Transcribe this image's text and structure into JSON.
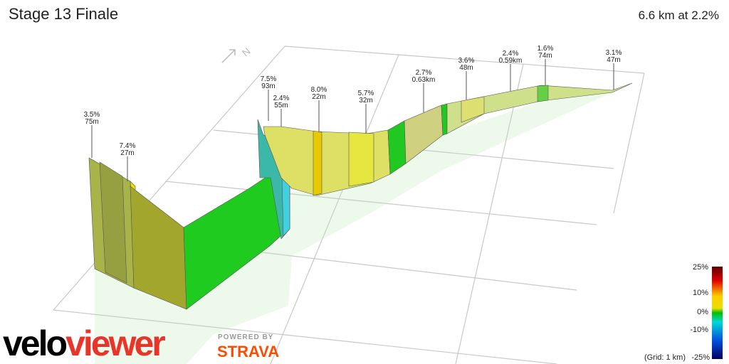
{
  "header": {
    "title": "Stage 13 Finale",
    "summary": "6.6 km at 2.2%"
  },
  "annotations": [
    {
      "grade": "3.5%",
      "length": "75m"
    },
    {
      "grade": "7.4%",
      "length": "27m"
    },
    {
      "grade": "7.5%",
      "length": "93m"
    },
    {
      "grade": "2.4%",
      "length": "55m"
    },
    {
      "grade": "8.0%",
      "length": "22m"
    },
    {
      "grade": "5.7%",
      "length": "32m"
    },
    {
      "grade": "2.7%",
      "length": "0.63km"
    },
    {
      "grade": "3.6%",
      "length": "48m"
    },
    {
      "grade": "2.4%",
      "length": "0.59km"
    },
    {
      "grade": "1.6%",
      "length": "74m"
    },
    {
      "grade": "3.1%",
      "length": "47m"
    }
  ],
  "north": "N",
  "legend": {
    "labels": [
      "25%",
      "10%",
      "0%",
      "-10%",
      "-25%"
    ],
    "grid_note": "(Grid: 1 km)"
  },
  "branding": {
    "logo_part1": "velo",
    "logo_part2": "viewer",
    "powered": "POWERED BY",
    "strava": "STRAVA"
  }
}
